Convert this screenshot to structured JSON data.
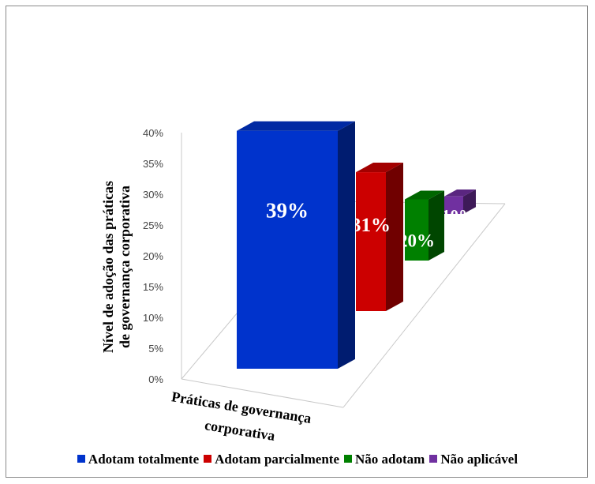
{
  "chart_data": {
    "type": "bar",
    "categories": [
      "Práticas de governança corporativa"
    ],
    "series": [
      {
        "name": "Adotam totalmente",
        "values": [
          39
        ],
        "label": "39%",
        "color": "#0033cc"
      },
      {
        "name": "Adotam parcialmente",
        "values": [
          31
        ],
        "label": "31%",
        "color": "#cc0000"
      },
      {
        "name": "Não adotam",
        "values": [
          20
        ],
        "label": "20%",
        "color": "#008000"
      },
      {
        "name": "Não aplicável",
        "values": [
          10
        ],
        "label": "10%",
        "color": "#7030a0"
      }
    ],
    "y_ticks": [
      "0%",
      "5%",
      "10%",
      "15%",
      "20%",
      "25%",
      "30%",
      "35%",
      "40%"
    ],
    "ylabel_line1": "Nível de adoção das práticas",
    "ylabel_line2": "de governança corporativa",
    "xlabel_line1": "Práticas de governança",
    "xlabel_line2": "corporativa",
    "ylim": [
      0,
      40
    ],
    "legend_position": "bottom",
    "style": "3d-column"
  }
}
